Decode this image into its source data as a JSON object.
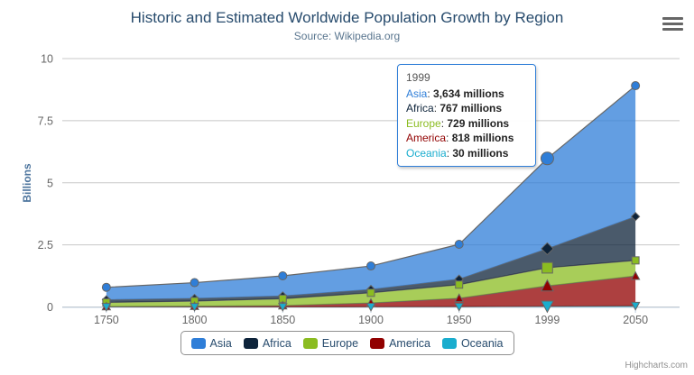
{
  "chart_data": {
    "type": "area",
    "stacking": "normal",
    "title": "Historic and Estimated Worldwide Population Growth by Region",
    "subtitle": "Source: Wikipedia.org",
    "categories": [
      "1750",
      "1800",
      "1850",
      "1900",
      "1950",
      "1999",
      "2050"
    ],
    "xlabel": "",
    "ylabel": "Billions",
    "ylim": [
      0,
      10
    ],
    "yticks": [
      0,
      2.5,
      5,
      7.5,
      10
    ],
    "grid": true,
    "legend_position": "bottom",
    "values_unit": "millions",
    "fill_opacity": 0.75,
    "line_color": "#666666",
    "grid_color": "#C8C8C8",
    "axis_line_color": "#C0D0E0",
    "hover_category": "1999",
    "hover_category_index": 5,
    "series": [
      {
        "name": "Asia",
        "color": "#2f7ed8",
        "marker": "circle",
        "values": [
          502,
          635,
          809,
          947,
          1402,
          3634,
          5268
        ]
      },
      {
        "name": "Africa",
        "color": "#0d233a",
        "marker": "diamond",
        "values": [
          106,
          107,
          111,
          133,
          221,
          767,
          1766
        ]
      },
      {
        "name": "Europe",
        "color": "#8bbc21",
        "marker": "square",
        "values": [
          163,
          203,
          276,
          408,
          547,
          729,
          628
        ]
      },
      {
        "name": "America",
        "color": "#910000",
        "marker": "triangle",
        "values": [
          18,
          31,
          54,
          156,
          339,
          818,
          1201
        ]
      },
      {
        "name": "Oceania",
        "color": "#1aadce",
        "marker": "triangle-down",
        "values": [
          2,
          2,
          2,
          6,
          13,
          30,
          46
        ]
      }
    ]
  },
  "tooltip": {
    "header": "1999",
    "border_color": "#2f7ed8",
    "rows": [
      {
        "label": "Asia",
        "value": "3,634 millions",
        "color": "#2f7ed8"
      },
      {
        "label": "Africa",
        "value": "767 millions",
        "color": "#0d233a"
      },
      {
        "label": "Europe",
        "value": "729 millions",
        "color": "#8bbc21"
      },
      {
        "label": "America",
        "value": "818 millions",
        "color": "#910000"
      },
      {
        "label": "Oceania",
        "value": "30 millions",
        "color": "#1aadce"
      }
    ]
  },
  "legend": {
    "items": [
      "Asia",
      "Africa",
      "Europe",
      "America",
      "Oceania"
    ]
  },
  "credits": {
    "label": "Highcharts.com"
  },
  "icons": {
    "export_menu": "hamburger-menu-icon"
  }
}
